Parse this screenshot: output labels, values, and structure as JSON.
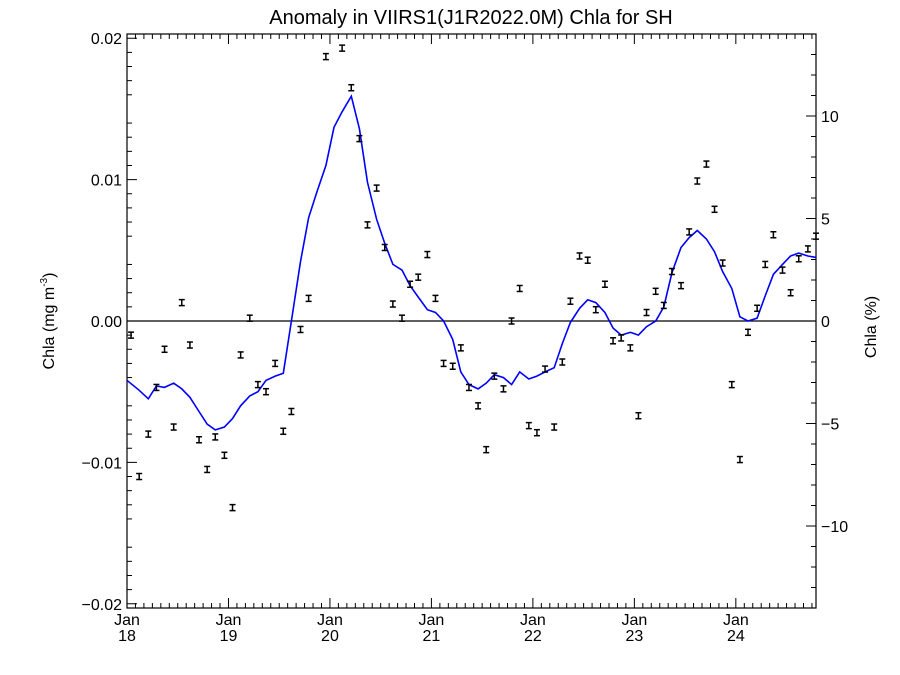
{
  "chart_data": {
    "type": "line",
    "title": "Anomaly in VIIRS1(J1R2022.0M) Chla for SH",
    "ylabel_left": "Chla (mg m",
    "ylabel_left_sup": "-3",
    "ylabel_left_close": ")",
    "ylabel_right": "Chla (%)",
    "xlabel": "",
    "x_range": [
      2018.0,
      2024.79
    ],
    "ylim_left": [
      -0.0203,
      0.0203
    ],
    "ylim_right": [
      -14,
      14
    ],
    "x_ticks": [
      {
        "value": 2018,
        "month": "Jan",
        "year": "18"
      },
      {
        "value": 2019,
        "month": "Jan",
        "year": "19"
      },
      {
        "value": 2020,
        "month": "Jan",
        "year": "20"
      },
      {
        "value": 2021,
        "month": "Jan",
        "year": "21"
      },
      {
        "value": 2022,
        "month": "Jan",
        "year": "22"
      },
      {
        "value": 2023,
        "month": "Jan",
        "year": "23"
      },
      {
        "value": 2024,
        "month": "Jan",
        "year": "24"
      }
    ],
    "y_ticks_left": [
      {
        "value": 0.02,
        "label": "0.02"
      },
      {
        "value": 0.01,
        "label": "0.01"
      },
      {
        "value": 0.0,
        "label": "0.00"
      },
      {
        "value": -0.01,
        "label": "-0.01"
      },
      {
        "value": -0.02,
        "label": "-0.02"
      }
    ],
    "y_ticks_right": [
      {
        "value": 10,
        "label": "10"
      },
      {
        "value": 5,
        "label": "5"
      },
      {
        "value": 0,
        "label": "0"
      },
      {
        "value": -5,
        "label": "-5"
      },
      {
        "value": -10,
        "label": "-10"
      }
    ],
    "zero_line": true,
    "series": [
      {
        "kind": "monthly_anomaly_points",
        "axis": "left",
        "color": "#000000",
        "points": [
          [
            2018.04,
            -0.001
          ],
          [
            2018.12,
            -0.011
          ],
          [
            2018.21,
            -0.008
          ],
          [
            2018.29,
            -0.0047
          ],
          [
            2018.37,
            -0.002
          ],
          [
            2018.46,
            -0.0075
          ],
          [
            2018.54,
            0.0013
          ],
          [
            2018.62,
            -0.0017
          ],
          [
            2018.71,
            -0.0084
          ],
          [
            2018.79,
            -0.0105
          ],
          [
            2018.87,
            -0.0082
          ],
          [
            2018.96,
            -0.0095
          ],
          [
            2019.04,
            -0.0132
          ],
          [
            2019.12,
            -0.0024
          ],
          [
            2019.21,
            0.0002
          ],
          [
            2019.29,
            -0.0045
          ],
          [
            2019.37,
            -0.005
          ],
          [
            2019.46,
            -0.003
          ],
          [
            2019.54,
            -0.0078
          ],
          [
            2019.62,
            -0.0064
          ],
          [
            2019.71,
            -0.0006
          ],
          [
            2019.79,
            0.0016
          ],
          [
            2019.96,
            0.0187
          ],
          [
            2020.12,
            0.0193
          ],
          [
            2020.21,
            0.0165
          ],
          [
            2020.29,
            0.0129
          ],
          [
            2020.37,
            0.0068
          ],
          [
            2020.46,
            0.0094
          ],
          [
            2020.54,
            0.0052
          ],
          [
            2020.62,
            0.0012
          ],
          [
            2020.71,
            0.0002
          ],
          [
            2020.79,
            0.0026
          ],
          [
            2020.87,
            0.0031
          ],
          [
            2020.96,
            0.0047
          ],
          [
            2021.04,
            0.0016
          ],
          [
            2021.12,
            -0.003
          ],
          [
            2021.21,
            -0.0032
          ],
          [
            2021.29,
            -0.0019
          ],
          [
            2021.37,
            -0.0047
          ],
          [
            2021.46,
            -0.006
          ],
          [
            2021.54,
            -0.0091
          ],
          [
            2021.62,
            -0.0039
          ],
          [
            2021.71,
            -0.0048
          ],
          [
            2021.79,
            0.0
          ],
          [
            2021.87,
            0.0023
          ],
          [
            2021.96,
            -0.0074
          ],
          [
            2022.04,
            -0.0079
          ],
          [
            2022.12,
            -0.0034
          ],
          [
            2022.21,
            -0.0075
          ],
          [
            2022.29,
            -0.0029
          ],
          [
            2022.37,
            0.0014
          ],
          [
            2022.46,
            0.0046
          ],
          [
            2022.54,
            0.0043
          ],
          [
            2022.62,
            0.0008
          ],
          [
            2022.71,
            0.0026
          ],
          [
            2022.79,
            -0.0014
          ],
          [
            2022.87,
            -0.0012
          ],
          [
            2022.96,
            -0.0019
          ],
          [
            2023.04,
            -0.0067
          ],
          [
            2023.12,
            0.0006
          ],
          [
            2023.21,
            0.0021
          ],
          [
            2023.29,
            0.0011
          ],
          [
            2023.37,
            0.0035
          ],
          [
            2023.46,
            0.0025
          ],
          [
            2023.54,
            0.0063
          ],
          [
            2023.62,
            0.0099
          ],
          [
            2023.71,
            0.0111
          ],
          [
            2023.79,
            0.0079
          ],
          [
            2023.87,
            0.0041
          ],
          [
            2023.96,
            -0.0045
          ],
          [
            2024.04,
            -0.0098
          ],
          [
            2024.12,
            -0.0008
          ],
          [
            2024.21,
            0.0009
          ],
          [
            2024.29,
            0.004
          ],
          [
            2024.37,
            0.0061
          ],
          [
            2024.46,
            0.0036
          ],
          [
            2024.54,
            0.002
          ],
          [
            2024.62,
            0.0044
          ],
          [
            2024.71,
            0.0051
          ],
          [
            2024.79,
            0.006
          ]
        ]
      },
      {
        "kind": "running_mean_line",
        "axis": "left",
        "color": "#0000ff",
        "points": [
          [
            2018.0,
            -0.0042
          ],
          [
            2018.12,
            -0.0049
          ],
          [
            2018.21,
            -0.0055
          ],
          [
            2018.29,
            -0.0046
          ],
          [
            2018.37,
            -0.0047
          ],
          [
            2018.46,
            -0.0044
          ],
          [
            2018.54,
            -0.0048
          ],
          [
            2018.62,
            -0.0054
          ],
          [
            2018.71,
            -0.0064
          ],
          [
            2018.79,
            -0.0073
          ],
          [
            2018.87,
            -0.0077
          ],
          [
            2018.96,
            -0.0075
          ],
          [
            2019.04,
            -0.0069
          ],
          [
            2019.12,
            -0.006
          ],
          [
            2019.21,
            -0.0053
          ],
          [
            2019.29,
            -0.005
          ],
          [
            2019.37,
            -0.0042
          ],
          [
            2019.46,
            -0.0039
          ],
          [
            2019.54,
            -0.0037
          ],
          [
            2019.62,
            0.0
          ],
          [
            2019.71,
            0.0042
          ],
          [
            2019.79,
            0.0073
          ],
          [
            2019.87,
            0.0091
          ],
          [
            2019.96,
            0.011
          ],
          [
            2020.04,
            0.0137
          ],
          [
            2020.12,
            0.0148
          ],
          [
            2020.21,
            0.0159
          ],
          [
            2020.29,
            0.0136
          ],
          [
            2020.37,
            0.0098
          ],
          [
            2020.46,
            0.0072
          ],
          [
            2020.54,
            0.0055
          ],
          [
            2020.62,
            0.004
          ],
          [
            2020.71,
            0.0036
          ],
          [
            2020.79,
            0.0025
          ],
          [
            2020.87,
            0.0017
          ],
          [
            2020.96,
            0.0008
          ],
          [
            2021.04,
            0.0006
          ],
          [
            2021.12,
            0.0
          ],
          [
            2021.21,
            -0.0013
          ],
          [
            2021.29,
            -0.0036
          ],
          [
            2021.37,
            -0.0045
          ],
          [
            2021.46,
            -0.0048
          ],
          [
            2021.54,
            -0.0044
          ],
          [
            2021.62,
            -0.0038
          ],
          [
            2021.71,
            -0.004
          ],
          [
            2021.79,
            -0.0045
          ],
          [
            2021.87,
            -0.0036
          ],
          [
            2021.96,
            -0.0041
          ],
          [
            2022.04,
            -0.0039
          ],
          [
            2022.12,
            -0.0036
          ],
          [
            2022.21,
            -0.0033
          ],
          [
            2022.29,
            -0.0016
          ],
          [
            2022.37,
            -0.0001
          ],
          [
            2022.46,
            0.0009
          ],
          [
            2022.54,
            0.0015
          ],
          [
            2022.62,
            0.0013
          ],
          [
            2022.71,
            0.0006
          ],
          [
            2022.79,
            -0.0005
          ],
          [
            2022.87,
            -0.001
          ],
          [
            2022.96,
            -0.0008
          ],
          [
            2023.04,
            -0.001
          ],
          [
            2023.12,
            -0.0004
          ],
          [
            2023.21,
            0.0
          ],
          [
            2023.29,
            0.001
          ],
          [
            2023.37,
            0.0034
          ],
          [
            2023.46,
            0.0052
          ],
          [
            2023.54,
            0.0059
          ],
          [
            2023.62,
            0.0064
          ],
          [
            2023.71,
            0.0058
          ],
          [
            2023.79,
            0.0049
          ],
          [
            2023.87,
            0.0035
          ],
          [
            2023.96,
            0.0023
          ],
          [
            2024.04,
            0.0003
          ],
          [
            2024.12,
            0.0
          ],
          [
            2024.21,
            0.0002
          ],
          [
            2024.29,
            0.0018
          ],
          [
            2024.37,
            0.0033
          ],
          [
            2024.46,
            0.004
          ],
          [
            2024.54,
            0.0046
          ],
          [
            2024.62,
            0.0048
          ],
          [
            2024.71,
            0.0046
          ],
          [
            2024.79,
            0.0045
          ]
        ]
      }
    ]
  }
}
